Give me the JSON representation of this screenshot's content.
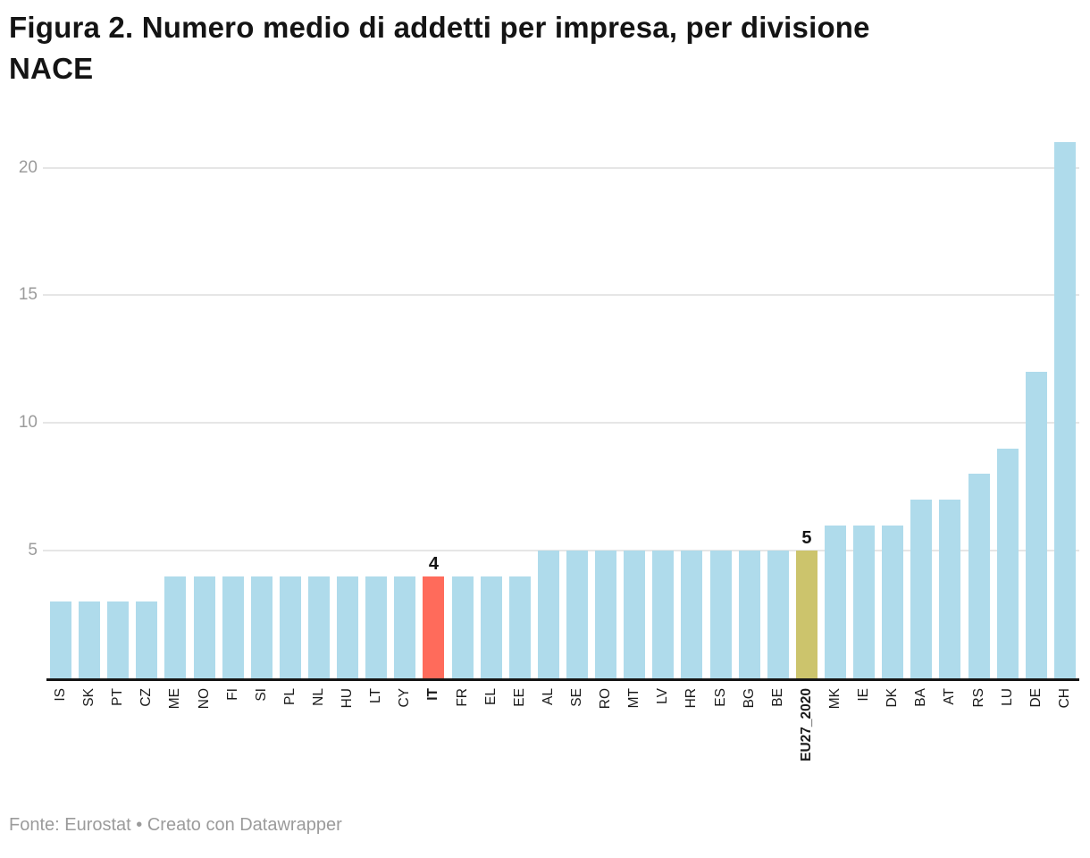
{
  "title_lines": [
    "Figura 2. Numero medio di addetti per impresa, per divisione",
    "NACE"
  ],
  "footer": {
    "credit": "Fonte: Eurostat • Creato con Datawrapper"
  },
  "colors": {
    "bar_default": "#AFDBEB",
    "bar_highlight_it": "#FF6B5B",
    "bar_highlight_eu": "#CCC46C",
    "gridline": "#E6E6E6",
    "axis_line": "#161616",
    "ytick_label": "#9B9B9B",
    "xtick_label": "#1A1A1A",
    "title": "#141414",
    "footer_text": "#9B9B9B"
  },
  "chart_data": {
    "type": "bar",
    "title": "Figura 2. Numero medio di addetti per impresa, per divisione NACE",
    "source_note": "Fonte: Eurostat • Creato con Datawrapper",
    "categories": [
      "IS",
      "SK",
      "PT",
      "CZ",
      "ME",
      "NO",
      "FI",
      "SI",
      "PL",
      "NL",
      "HU",
      "LT",
      "CY",
      "IT",
      "FR",
      "EL",
      "EE",
      "AL",
      "SE",
      "RO",
      "MT",
      "LV",
      "HR",
      "ES",
      "BG",
      "BE",
      "EU27_2020",
      "MK",
      "IE",
      "DK",
      "BA",
      "AT",
      "RS",
      "LU",
      "DE",
      "CH"
    ],
    "values": [
      3,
      3,
      3,
      3,
      4,
      4,
      4,
      4,
      4,
      4,
      4,
      4,
      4,
      4,
      4,
      4,
      4,
      5,
      5,
      5,
      5,
      5,
      5,
      5,
      5,
      5,
      5,
      6,
      6,
      6,
      7,
      7,
      8,
      9,
      12,
      21
    ],
    "yticks": [
      5,
      10,
      15,
      20
    ],
    "ylim": [
      0,
      21
    ],
    "grid": "horizontal",
    "legend": "none",
    "xlabel": "",
    "ylabel": "",
    "highlights": [
      {
        "category": "IT",
        "color": "#FF6B5B",
        "value_label": "4",
        "bold_label": true
      },
      {
        "category": "EU27_2020",
        "color": "#CCC46C",
        "value_label": "5",
        "bold_label": true
      }
    ]
  }
}
